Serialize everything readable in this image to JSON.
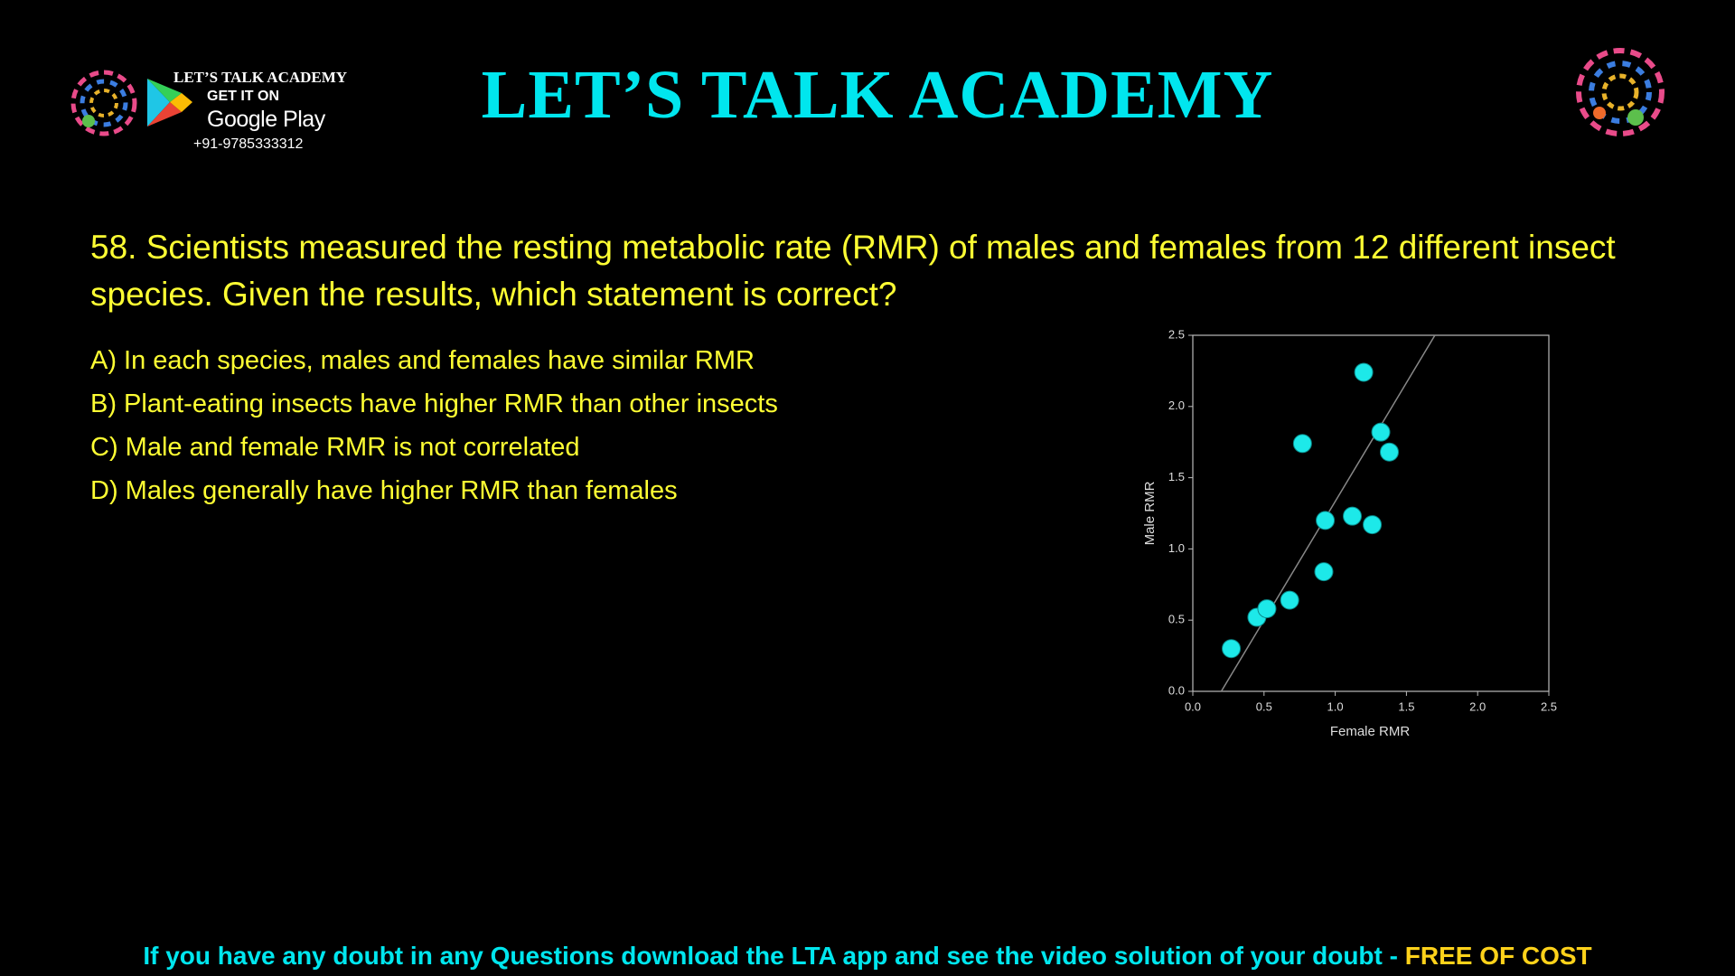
{
  "header": {
    "title": "LET’S TALK ACADEMY",
    "brand": "LET’S TALK ACADEMY",
    "get_it_on": "GET IT ON",
    "store": "Google Play",
    "phone": "+91-9785333312"
  },
  "question": "58. Scientists measured the resting metabolic rate (RMR) of males and females from 12 different insect species. Given the results, which statement is correct?",
  "options": [
    "A) In each species, males and females have similar RMR",
    "B) Plant-eating insects have higher RMR than other insects",
    "C) Male and female RMR is not correlated",
    "D) Males generally have higher RMR than females"
  ],
  "chart_data": {
    "type": "scatter",
    "x_label": "Female RMR",
    "y_label": "Male RMR",
    "x": [
      0.27,
      0.45,
      0.52,
      0.68,
      0.77,
      0.93,
      0.92,
      1.12,
      1.26,
      1.2,
      1.32,
      1.38
    ],
    "values": [
      0.3,
      0.52,
      0.58,
      0.64,
      1.74,
      1.2,
      0.84,
      1.23,
      1.17,
      2.24,
      1.82,
      1.68
    ],
    "color": "#1de9e9",
    "trend_line": {
      "x": [
        0.2,
        1.7
      ],
      "y": [
        0,
        2.5
      ],
      "color": "#888888"
    },
    "xlim": [
      0,
      2.5
    ],
    "ylim": [
      0,
      2.5
    ],
    "xticks": [
      {
        "value": 0,
        "label": "0.0"
      },
      0.5,
      {
        "value": 1,
        "label": "1.0"
      },
      1.5,
      {
        "value": 2,
        "label": "2.0"
      },
      2.5
    ],
    "yticks": [
      {
        "value": 0,
        "label": "0.0"
      },
      0.5,
      {
        "value": 1,
        "label": "1.0"
      },
      1.5,
      {
        "value": 2,
        "label": "2.0"
      },
      2.5
    ]
  },
  "footer": {
    "text": "If you have any doubt in any Questions download the LTA app and see the video solution of your doubt - ",
    "highlight": "FREE OF COST"
  }
}
